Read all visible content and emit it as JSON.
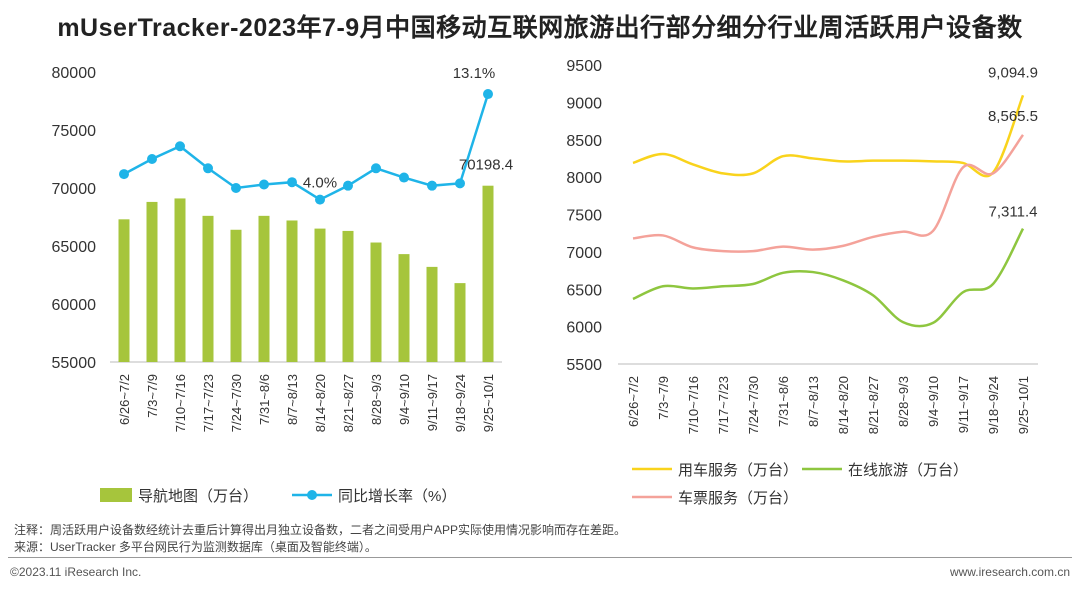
{
  "title": "mUserTracker-2023年7-9月中国移动互联网旅游出行部分细分行业周活跃用户设备数",
  "chart_data": [
    {
      "type": "bar+line",
      "categories": [
        "6/26~7/2",
        "7/3~7/9",
        "7/10~7/16",
        "7/17~7/23",
        "7/24~7/30",
        "7/31~8/6",
        "8/7~8/13",
        "8/14~8/20",
        "8/21~8/27",
        "8/28~9/3",
        "9/4~9/10",
        "9/11~9/17",
        "9/18~9/24",
        "9/25~10/1"
      ],
      "ylim": [
        55000,
        80000
      ],
      "yticks": [
        "80000",
        "75000",
        "70000",
        "65000",
        "60000",
        "55000"
      ],
      "series": [
        {
          "name": "导航地图（万台）",
          "kind": "bar",
          "color": "#a6c53c",
          "values": [
            67300,
            68800,
            69100,
            67600,
            66400,
            67600,
            67200,
            66500,
            66300,
            65300,
            64300,
            63200,
            61800,
            70198.4
          ]
        },
        {
          "name": "同比增长率（%）",
          "kind": "line",
          "color": "#1fb4e8",
          "values": [
            71200,
            72500,
            73600,
            71700,
            70000,
            70300,
            70500,
            69000,
            70200,
            71700,
            70900,
            70200,
            70400,
            78100
          ]
        }
      ],
      "data_labels": [
        {
          "series": 1,
          "index": 7,
          "text": "4.0%"
        },
        {
          "series": 1,
          "index": 13,
          "text": "13.1%"
        },
        {
          "series": 0,
          "index": 13,
          "text": "70198.4"
        }
      ]
    },
    {
      "type": "line",
      "categories": [
        "6/26~7/2",
        "7/3~7/9",
        "7/10~7/16",
        "7/17~7/23",
        "7/24~7/30",
        "7/31~8/6",
        "8/7~8/13",
        "8/14~8/20",
        "8/21~8/27",
        "8/28~9/3",
        "9/4~9/10",
        "9/11~9/17",
        "9/18~9/24",
        "9/25~10/1"
      ],
      "ylim": [
        5500,
        9500
      ],
      "yticks": [
        "9500",
        "9000",
        "8500",
        "8000",
        "7500",
        "7000",
        "6500",
        "6000",
        "5500"
      ],
      "series": [
        {
          "name": "用车服务（万台）",
          "color": "#f9d31c",
          "values": [
            8190,
            8310,
            8170,
            8050,
            8050,
            8280,
            8250,
            8210,
            8220,
            8220,
            8210,
            8190,
            8060,
            9094.9
          ]
        },
        {
          "name": "在线旅游（万台）",
          "color": "#8ec63f",
          "values": [
            6370,
            6540,
            6510,
            6540,
            6570,
            6720,
            6730,
            6620,
            6420,
            6060,
            6050,
            6460,
            6570,
            7311.4
          ]
        },
        {
          "name": "车票服务（万台）",
          "color": "#f4a29a",
          "values": [
            7180,
            7220,
            7060,
            7010,
            7010,
            7070,
            7030,
            7080,
            7200,
            7270,
            7280,
            8130,
            8050,
            8565.5
          ]
        }
      ],
      "data_labels": [
        {
          "series": 0,
          "index": 13,
          "text": "9,094.9"
        },
        {
          "series": 2,
          "index": 13,
          "text": "8,565.5"
        },
        {
          "series": 1,
          "index": 13,
          "text": "7,311.4"
        }
      ]
    }
  ],
  "note": "注释：周活跃用户设备数经统计去重后计算得出月独立设备数，二者之间受用户APP实际使用情况影响而存在差距。",
  "source": "来源：UserTracker 多平台网民行为监测数据库（桌面及智能终端）。",
  "footer_left": "©2023.11 iResearch Inc.",
  "footer_right": "www.iresearch.com.cn"
}
